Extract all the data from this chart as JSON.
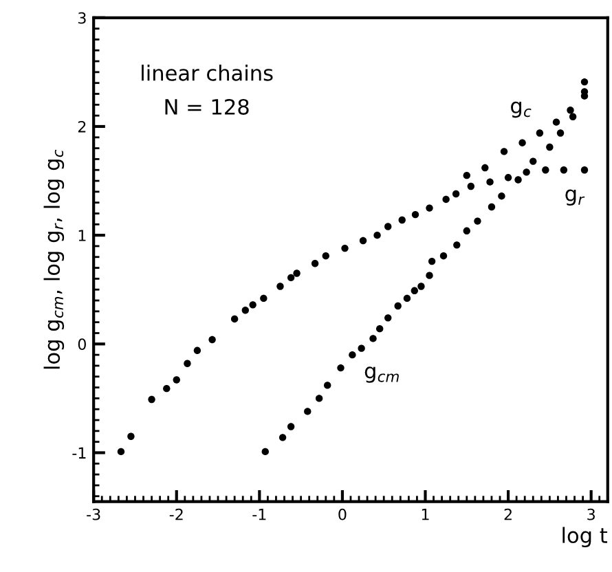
{
  "chart_data": {
    "type": "scatter",
    "xlabel": "log t",
    "ylabel": "log g$_{cm}$, log g$_{r}$, log g$_{c}$",
    "annotations": [
      "linear chains",
      "N = 128"
    ],
    "xlim": [
      -3,
      3.2
    ],
    "ylim": [
      -1.45,
      3
    ],
    "xticks": [
      -3,
      -2,
      -1,
      0,
      1,
      2,
      3
    ],
    "yticks": [
      -1,
      0,
      1,
      2,
      3
    ],
    "grid": false,
    "legend": false,
    "marker": "circle",
    "series": [
      {
        "color": "#000000",
        "x": [
          -2.67,
          -2.55,
          -2.3,
          -2.12,
          -2.0,
          -1.87,
          -1.75,
          -1.57,
          -1.3,
          -1.17,
          -1.08,
          -0.95,
          -0.75,
          -0.62,
          -0.55,
          -0.33,
          -0.2,
          0.03,
          0.25,
          0.42,
          0.55,
          0.72,
          0.88,
          1.05,
          1.25,
          1.37
        ],
        "values": [
          -0.99,
          -0.85,
          -0.51,
          -0.41,
          -0.33,
          -0.18,
          -0.06,
          0.04,
          0.23,
          0.31,
          0.36,
          0.42,
          0.53,
          0.61,
          0.65,
          0.74,
          0.81,
          0.88,
          0.95,
          1.0,
          1.08,
          1.14,
          1.19,
          1.25,
          1.33,
          1.38
        ]
      },
      {
        "name": "g$_{c}$",
        "color": "#000000",
        "x": [
          1.5,
          1.72,
          1.95,
          2.17,
          2.38,
          2.58,
          2.75,
          2.92,
          2.92
        ],
        "values": [
          1.55,
          1.62,
          1.77,
          1.85,
          1.94,
          2.04,
          2.15,
          2.32,
          2.41
        ]
      },
      {
        "name": "g$_{r}$",
        "color": "#000000",
        "x": [
          1.55,
          1.78,
          2.0,
          2.22,
          2.45,
          2.67,
          2.92
        ],
        "values": [
          1.45,
          1.49,
          1.53,
          1.58,
          1.6,
          1.6,
          1.6
        ]
      },
      {
        "name": "g$_{cm}$",
        "color": "#000000",
        "x": [
          -0.93,
          -0.72,
          -0.62,
          -0.42,
          -0.28,
          -0.18,
          -0.02,
          0.12,
          0.23,
          0.37,
          0.45,
          0.55,
          0.67,
          0.78,
          0.87,
          0.95,
          1.05,
          1.08,
          1.22,
          1.38,
          1.5,
          1.63,
          1.8,
          1.92,
          2.12,
          2.3,
          2.5,
          2.63,
          2.78,
          2.92
        ],
        "values": [
          -0.99,
          -0.86,
          -0.76,
          -0.62,
          -0.5,
          -0.38,
          -0.22,
          -0.1,
          -0.04,
          0.05,
          0.14,
          0.24,
          0.35,
          0.42,
          0.49,
          0.53,
          0.63,
          0.76,
          0.81,
          0.91,
          1.04,
          1.13,
          1.26,
          1.36,
          1.51,
          1.68,
          1.81,
          1.94,
          2.09,
          2.28
        ]
      }
    ]
  }
}
